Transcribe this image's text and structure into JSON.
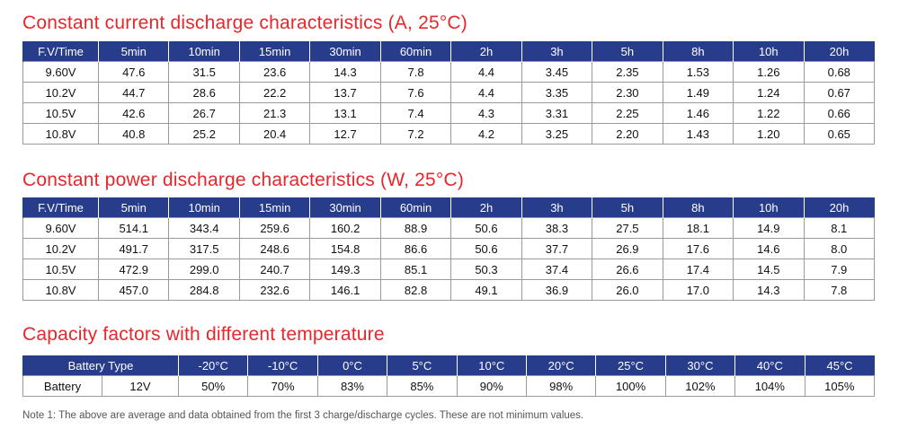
{
  "current_section": {
    "title": "Constant current discharge characteristics (A, 25°C)",
    "headers": [
      "F.V/Time",
      "5min",
      "10min",
      "15min",
      "30min",
      "60min",
      "2h",
      "3h",
      "5h",
      "8h",
      "10h",
      "20h"
    ],
    "rows": [
      [
        "9.60V",
        "47.6",
        "31.5",
        "23.6",
        "14.3",
        "7.8",
        "4.4",
        "3.45",
        "2.35",
        "1.53",
        "1.26",
        "0.68"
      ],
      [
        "10.2V",
        "44.7",
        "28.6",
        "22.2",
        "13.7",
        "7.6",
        "4.4",
        "3.35",
        "2.30",
        "1.49",
        "1.24",
        "0.67"
      ],
      [
        "10.5V",
        "42.6",
        "26.7",
        "21.3",
        "13.1",
        "7.4",
        "4.3",
        "3.31",
        "2.25",
        "1.46",
        "1.22",
        "0.66"
      ],
      [
        "10.8V",
        "40.8",
        "25.2",
        "20.4",
        "12.7",
        "7.2",
        "4.2",
        "3.25",
        "2.20",
        "1.43",
        "1.20",
        "0.65"
      ]
    ]
  },
  "power_section": {
    "title": "Constant power discharge characteristics (W, 25°C)",
    "headers": [
      "F.V/Time",
      "5min",
      "10min",
      "15min",
      "30min",
      "60min",
      "2h",
      "3h",
      "5h",
      "8h",
      "10h",
      "20h"
    ],
    "rows": [
      [
        "9.60V",
        "514.1",
        "343.4",
        "259.6",
        "160.2",
        "88.9",
        "50.6",
        "38.3",
        "27.5",
        "18.1",
        "14.9",
        "8.1"
      ],
      [
        "10.2V",
        "491.7",
        "317.5",
        "248.6",
        "154.8",
        "86.6",
        "50.6",
        "37.7",
        "26.9",
        "17.6",
        "14.6",
        "8.0"
      ],
      [
        "10.5V",
        "472.9",
        "299.0",
        "240.7",
        "149.3",
        "85.1",
        "50.3",
        "37.4",
        "26.6",
        "17.4",
        "14.5",
        "7.9"
      ],
      [
        "10.8V",
        "457.0",
        "284.8",
        "232.6",
        "146.1",
        "82.8",
        "49.1",
        "36.9",
        "26.0",
        "17.0",
        "14.3",
        "7.8"
      ]
    ]
  },
  "capacity_section": {
    "title": "Capacity factors with different temperature",
    "header_label": "Battery Type",
    "temperatures": [
      "-20°C",
      "-10°C",
      "0°C",
      "5°C",
      "10°C",
      "20°C",
      "25°C",
      "30°C",
      "40°C",
      "45°C"
    ],
    "row_label": "Battery",
    "row_voltage": "12V",
    "factors": [
      "50%",
      "70%",
      "83%",
      "85%",
      "90%",
      "98%",
      "100%",
      "102%",
      "104%",
      "105%"
    ]
  },
  "note": "Note 1: The above are average and data obtained from the first 3 charge/discharge cycles. These are not minimum values.",
  "colors": {
    "header_bg": "#283c8c",
    "title_red": "#e8262b",
    "border": "#9a9a9a"
  }
}
